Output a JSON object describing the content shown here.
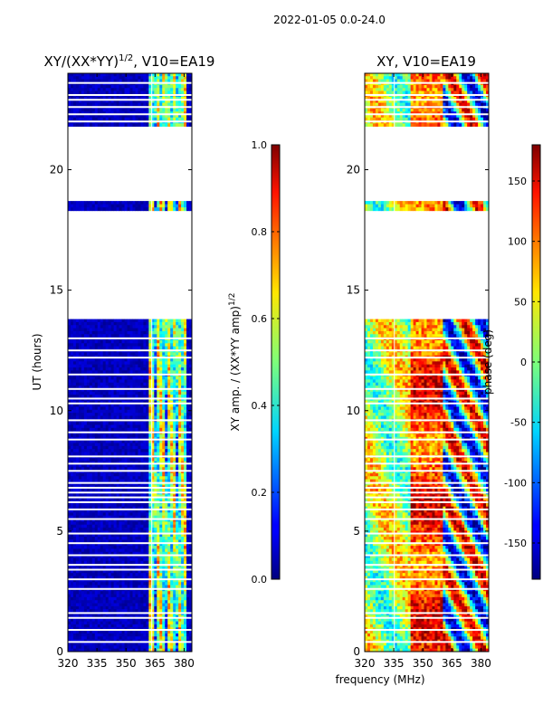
{
  "chart_data": {
    "suptitle": "2022-01-05 0.0-24.0",
    "shared_xlabel": "frequency (MHz)",
    "panels": [
      {
        "type": "heatmap",
        "title_base": "XY/(XX*YY)",
        "title_sup": "1/2",
        "title_suffix": ", V10=EA19",
        "ylabel": "UT (hours)",
        "xlim": [
          320,
          384
        ],
        "ylim": [
          0,
          24
        ],
        "xticks": [
          320,
          335,
          350,
          365,
          380
        ],
        "yticks": [
          0,
          5,
          10,
          15,
          20
        ],
        "colorbar": {
          "label_base": "XY amp. / (XX*YY amp)",
          "label_sup": "1/2",
          "range": [
            0.0,
            1.0
          ],
          "ticks": [
            "0.0",
            "0.2",
            "0.4",
            "0.6",
            "0.8",
            "1.0"
          ],
          "tick_values": [
            0.0,
            0.2,
            0.4,
            0.6,
            0.8,
            1.0
          ]
        },
        "data_blocks_hours": [
          [
            0,
            13.8
          ],
          [
            18.3,
            18.7
          ],
          [
            21.8,
            24
          ]
        ],
        "high_band_mhz": [
          362,
          381
        ]
      },
      {
        "type": "heatmap",
        "title": "XY, V10=EA19",
        "xlim": [
          320,
          384
        ],
        "ylim": [
          0,
          24
        ],
        "xticks": [
          320,
          335,
          350,
          365,
          380
        ],
        "yticks": [
          0,
          5,
          10,
          15,
          20
        ],
        "colorbar": {
          "label": "phase (deg)",
          "range": [
            -180,
            180
          ],
          "ticks": [
            "-150",
            "-100",
            "-50",
            "0",
            "50",
            "100",
            "150"
          ],
          "tick_values": [
            -150,
            -100,
            -50,
            0,
            50,
            100,
            150
          ]
        },
        "data_blocks_hours": [
          [
            0,
            13.8
          ],
          [
            18.3,
            18.7
          ],
          [
            21.8,
            24
          ]
        ]
      }
    ],
    "gap_rows_hours": [
      0.4,
      0.9,
      1.4,
      1.6,
      2.6,
      3.0,
      3.4,
      3.6,
      4.0,
      4.5,
      4.9,
      5.5,
      5.9,
      6.2,
      6.4,
      6.6,
      6.8,
      7.0,
      7.5,
      7.8,
      8.1,
      8.8,
      9.1,
      9.6,
      10.3,
      10.5,
      10.9,
      11.5,
      12.2,
      12.5,
      13.0,
      22.0,
      22.3,
      22.6,
      22.9,
      23.1,
      23.6
    ]
  }
}
